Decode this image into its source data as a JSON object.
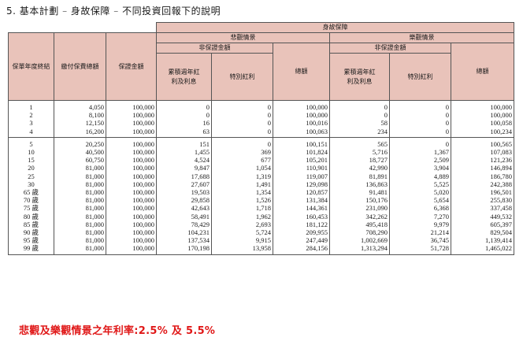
{
  "title": {
    "section": "5. 基本計劃",
    "sep1": "–",
    "topic": "身故保障",
    "sep2": "–",
    "subtitle": "不同投資回報下的說明"
  },
  "headers": {
    "death_benefit": "身故保障",
    "pessimistic": "悲觀情景",
    "optimistic": "樂觀情景",
    "non_guaranteed": "非保證金額",
    "policy_year": "保單年度終結",
    "total_premium": "繳付保費總額",
    "guaranteed": "保證金額",
    "accum_bonus": "累積週年紅利及利息",
    "special_bonus": "特別紅利",
    "total": "總額"
  },
  "table": {
    "group1": [
      [
        "1",
        "4,050",
        "100,000",
        "0",
        "0",
        "100,000",
        "0",
        "0",
        "100,000"
      ],
      [
        "2",
        "8,100",
        "100,000",
        "0",
        "0",
        "100,000",
        "0",
        "0",
        "100,000"
      ],
      [
        "3",
        "12,150",
        "100,000",
        "16",
        "0",
        "100,016",
        "58",
        "0",
        "100,058"
      ],
      [
        "4",
        "16,200",
        "100,000",
        "63",
        "0",
        "100,063",
        "234",
        "0",
        "100,234"
      ]
    ],
    "group2": [
      [
        "5",
        "20,250",
        "100,000",
        "151",
        "0",
        "100,151",
        "565",
        "0",
        "100,565"
      ],
      [
        "10",
        "40,500",
        "100,000",
        "1,455",
        "369",
        "101,824",
        "5,716",
        "1,367",
        "107,083"
      ],
      [
        "15",
        "60,750",
        "100,000",
        "4,524",
        "677",
        "105,201",
        "18,727",
        "2,509",
        "121,236"
      ],
      [
        "20",
        "81,000",
        "100,000",
        "9,847",
        "1,054",
        "110,901",
        "42,990",
        "3,904",
        "146,894"
      ],
      [
        "25",
        "81,000",
        "100,000",
        "17,688",
        "1,319",
        "119,007",
        "81,891",
        "4,889",
        "186,780"
      ],
      [
        "30",
        "81,000",
        "100,000",
        "27,607",
        "1,491",
        "129,098",
        "136,863",
        "5,525",
        "242,388"
      ],
      [
        "65 歲",
        "81,000",
        "100,000",
        "19,503",
        "1,354",
        "120,857",
        "91,481",
        "5,020",
        "196,501"
      ],
      [
        "70 歲",
        "81,000",
        "100,000",
        "29,858",
        "1,526",
        "131,384",
        "150,176",
        "5,654",
        "255,830"
      ],
      [
        "75 歲",
        "81,000",
        "100,000",
        "42,643",
        "1,718",
        "144,361",
        "231,090",
        "6,368",
        "337,458"
      ],
      [
        "80 歲",
        "81,000",
        "100,000",
        "58,491",
        "1,962",
        "160,453",
        "342,262",
        "7,270",
        "449,532"
      ],
      [
        "85 歲",
        "81,000",
        "100,000",
        "78,429",
        "2,693",
        "181,122",
        "495,418",
        "9,979",
        "605,397"
      ],
      [
        "90 歲",
        "81,000",
        "100,000",
        "104,231",
        "5,724",
        "209,955",
        "708,290",
        "21,214",
        "829,504"
      ],
      [
        "95 歲",
        "81,000",
        "100,000",
        "137,534",
        "9,915",
        "247,449",
        "1,002,669",
        "36,745",
        "1,139,414"
      ],
      [
        "99 歲",
        "81,000",
        "100,000",
        "170,198",
        "13,958",
        "284,156",
        "1,313,294",
        "51,728",
        "1,465,022"
      ]
    ]
  },
  "note": "悲觀及樂觀情景之年利率:2.5% 及 5.5%",
  "colors": {
    "header_bg": "#e9c3ba",
    "note": "#e01818"
  }
}
